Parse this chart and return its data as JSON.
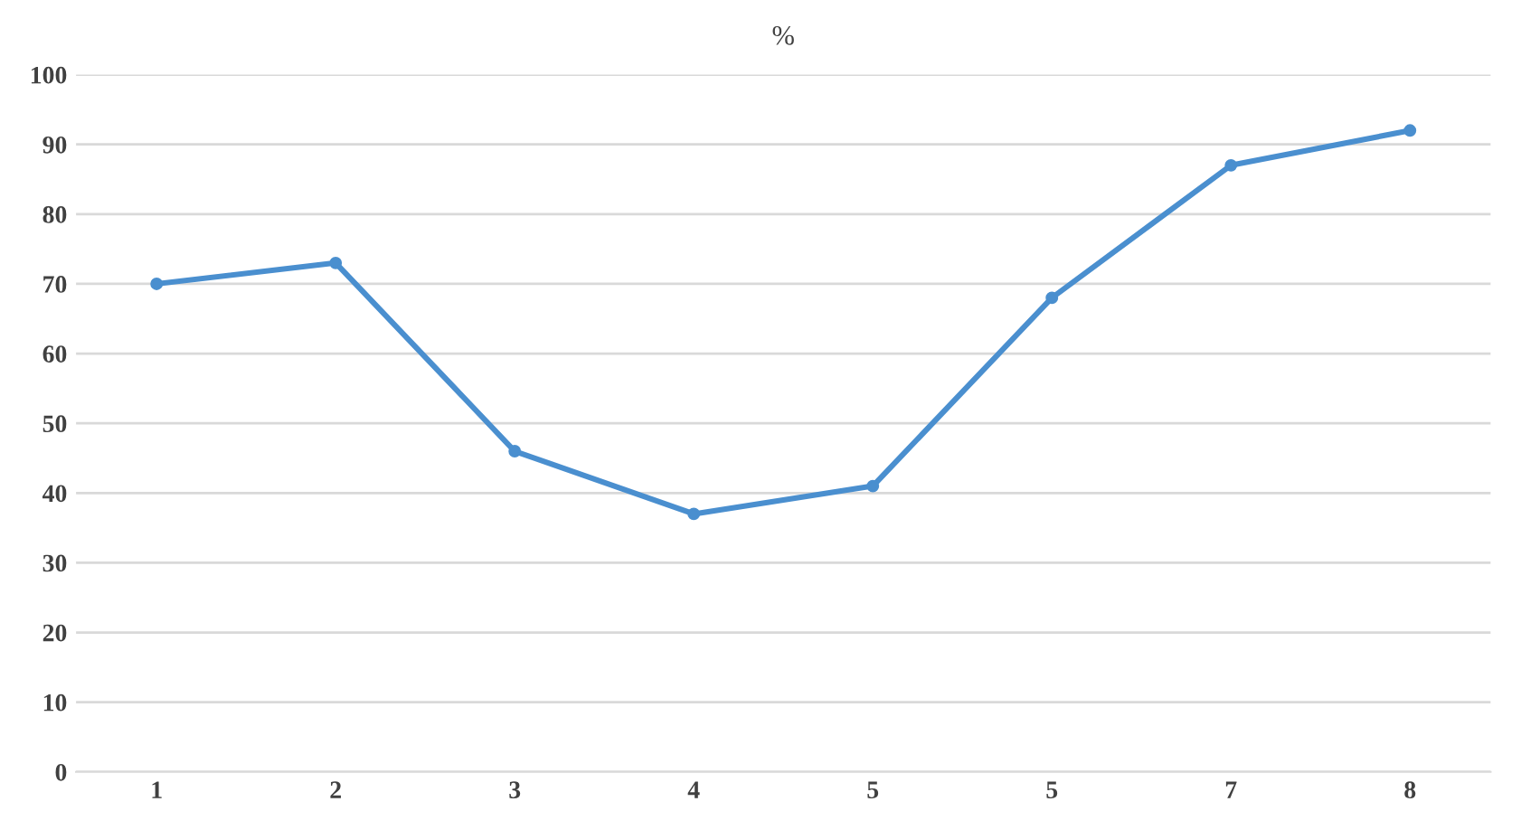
{
  "chart_data": {
    "type": "line",
    "title": "%",
    "categories": [
      "1",
      "2",
      "3",
      "4",
      "5",
      "5",
      "7",
      "8"
    ],
    "series": [
      {
        "color": "#4a8fcf",
        "values": [
          70,
          73,
          46,
          37,
          41,
          68,
          87,
          92
        ]
      }
    ],
    "ylim": [
      0,
      100
    ],
    "yticks": [
      0,
      10,
      20,
      30,
      40,
      50,
      60,
      70,
      80,
      90,
      100
    ],
    "grid": "y",
    "marker": "circle",
    "line_style": "solid",
    "legend": false
  }
}
